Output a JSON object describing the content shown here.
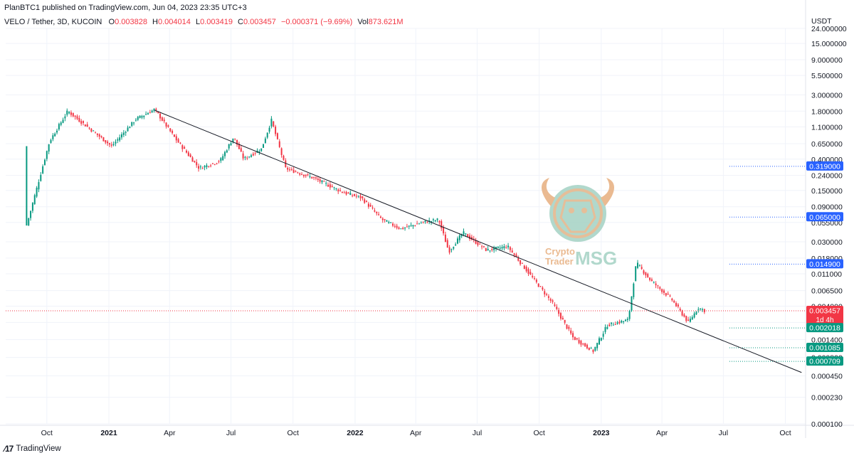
{
  "header": {
    "published": "PlanBTC1 published on TradingView.com, Jun 04, 2023 23:35 UTC+3"
  },
  "legend": {
    "symbol": "VELO / Tether, 3D, KUCOIN",
    "o_label": "O",
    "o": "0.003828",
    "h_label": "H",
    "h": "0.004014",
    "l_label": "L",
    "l": "0.003419",
    "c_label": "C",
    "c": "0.003457",
    "change": "−0.000371 (−9.69%)",
    "vol_label": "Vol",
    "vol": "873.621M"
  },
  "axis": {
    "unit": "USDT",
    "x_ticks": [
      "Oct",
      "2021",
      "Apr",
      "Jul",
      "Oct",
      "2022",
      "Apr",
      "Jul",
      "Oct",
      "2023",
      "Apr",
      "Jul",
      "Oct"
    ],
    "y_ticks": [
      "24.000000",
      "15.000000",
      "9.000000",
      "5.500000",
      "3.000000",
      "1.800000",
      "1.100000",
      "0.650000",
      "0.400000",
      "0.240000",
      "0.150000",
      "0.090000",
      "0.055000",
      "0.030000",
      "0.018000",
      "0.011000",
      "0.006500",
      "0.004000",
      "0.002400",
      "0.001400",
      "0.000800",
      "0.000450",
      "0.000230",
      "0.000100"
    ]
  },
  "price_labels": [
    {
      "text": "0.319000",
      "color": "#2962ff",
      "value": 0.319
    },
    {
      "text": "0.065000",
      "color": "#2962ff",
      "value": 0.065
    },
    {
      "text": "0.014900",
      "color": "#2962ff",
      "value": 0.0149
    },
    {
      "text": "0.003457",
      "color": "#f23645",
      "value": 0.003457,
      "sub": "1d 4h"
    },
    {
      "text": "0.002018",
      "color": "#089981",
      "value": 0.002018
    },
    {
      "text": "0.001085",
      "color": "#089981",
      "value": 0.001085
    },
    {
      "text": "0.000709",
      "color": "#089981",
      "value": 0.000709
    }
  ],
  "watermark": {
    "line1": "Crypto",
    "line2": "Trader",
    "brand": "MSG"
  },
  "footer": {
    "brand": "TradingView"
  },
  "colors": {
    "up": "#089981",
    "down": "#f23645",
    "trend": "#131722",
    "grid": "#f0f3fa"
  },
  "chart_data": {
    "type": "candlestick",
    "title": "VELO / Tether, 3D, KUCOIN",
    "y_scale": "log",
    "ylabel": "USDT",
    "ylim": [
      0.0001,
      24
    ],
    "x_range": [
      "2020-08-01",
      "2023-10-31"
    ],
    "trendline": {
      "start": {
        "date": "2021-03-10",
        "price": 1.85
      },
      "end": {
        "date": "2023-10-25",
        "price": 0.0005
      }
    },
    "horizontal_levels": [
      0.319,
      0.065,
      0.0149,
      0.003457,
      0.002018,
      0.001085,
      0.000709
    ],
    "last_close": 0.003457,
    "key_points": [
      {
        "date": "2020-09-01",
        "price": 0.05
      },
      {
        "date": "2020-10-05",
        "price": 0.7
      },
      {
        "date": "2020-11-01",
        "price": 1.8
      },
      {
        "date": "2020-11-25",
        "price": 1.2
      },
      {
        "date": "2021-01-05",
        "price": 0.6
      },
      {
        "date": "2021-02-10",
        "price": 1.4
      },
      {
        "date": "2021-03-10",
        "price": 1.9
      },
      {
        "date": "2021-04-10",
        "price": 0.75
      },
      {
        "date": "2021-05-15",
        "price": 0.3
      },
      {
        "date": "2021-06-15",
        "price": 0.38
      },
      {
        "date": "2021-07-05",
        "price": 0.8
      },
      {
        "date": "2021-07-20",
        "price": 0.4
      },
      {
        "date": "2021-08-15",
        "price": 0.55
      },
      {
        "date": "2021-08-30",
        "price": 1.35
      },
      {
        "date": "2021-09-20",
        "price": 0.3
      },
      {
        "date": "2021-11-01",
        "price": 0.22
      },
      {
        "date": "2021-12-15",
        "price": 0.14
      },
      {
        "date": "2022-01-10",
        "price": 0.12
      },
      {
        "date": "2022-02-10",
        "price": 0.06
      },
      {
        "date": "2022-03-10",
        "price": 0.045
      },
      {
        "date": "2022-04-10",
        "price": 0.055
      },
      {
        "date": "2022-05-05",
        "price": 0.06
      },
      {
        "date": "2022-05-20",
        "price": 0.022
      },
      {
        "date": "2022-06-10",
        "price": 0.04
      },
      {
        "date": "2022-07-15",
        "price": 0.023
      },
      {
        "date": "2022-08-15",
        "price": 0.026
      },
      {
        "date": "2022-09-20",
        "price": 0.01
      },
      {
        "date": "2022-10-20",
        "price": 0.0045
      },
      {
        "date": "2022-11-20",
        "price": 0.0015
      },
      {
        "date": "2022-12-20",
        "price": 0.00098
      },
      {
        "date": "2023-01-10",
        "price": 0.0022
      },
      {
        "date": "2023-02-10",
        "price": 0.0026
      },
      {
        "date": "2023-02-22",
        "price": 0.0155
      },
      {
        "date": "2023-03-15",
        "price": 0.009
      },
      {
        "date": "2023-04-15",
        "price": 0.005
      },
      {
        "date": "2023-05-10",
        "price": 0.0024
      },
      {
        "date": "2023-05-25",
        "price": 0.0038
      },
      {
        "date": "2023-06-04",
        "price": 0.003457
      }
    ]
  }
}
